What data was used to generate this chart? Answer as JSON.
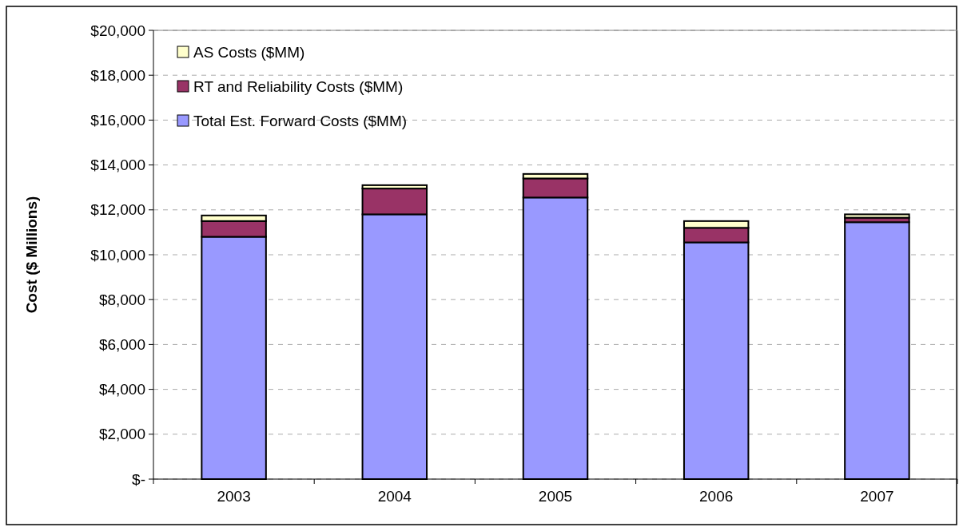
{
  "chart_data": {
    "type": "bar",
    "stacked": true,
    "ylabel": "Cost ($ Millions)",
    "categories": [
      "2003",
      "2004",
      "2005",
      "2006",
      "2007"
    ],
    "series": [
      {
        "name": "Total Est. Forward Costs ($MM)",
        "color": "#9999ff",
        "values": [
          10800,
          11800,
          12550,
          10550,
          11450
        ]
      },
      {
        "name": "RT and Reliability Costs ($MM)",
        "color": "#993366",
        "values": [
          700,
          1150,
          850,
          650,
          200
        ]
      },
      {
        "name": "AS Costs ($MM)",
        "color": "#ffffcc",
        "values": [
          250,
          150,
          200,
          300,
          150
        ]
      }
    ],
    "ylim": [
      0,
      20000
    ],
    "yticks": [
      {
        "value": 0,
        "label": "$-"
      },
      {
        "value": 2000,
        "label": "$2,000"
      },
      {
        "value": 4000,
        "label": "$4,000"
      },
      {
        "value": 6000,
        "label": "$6,000"
      },
      {
        "value": 8000,
        "label": "$8,000"
      },
      {
        "value": 10000,
        "label": "$10,000"
      },
      {
        "value": 12000,
        "label": "$12,000"
      },
      {
        "value": 14000,
        "label": "$14,000"
      },
      {
        "value": 16000,
        "label": "$16,000"
      },
      {
        "value": 18000,
        "label": "$18,000"
      },
      {
        "value": 20000,
        "label": "$20,000"
      }
    ],
    "grid": "y",
    "legend": "top left"
  }
}
